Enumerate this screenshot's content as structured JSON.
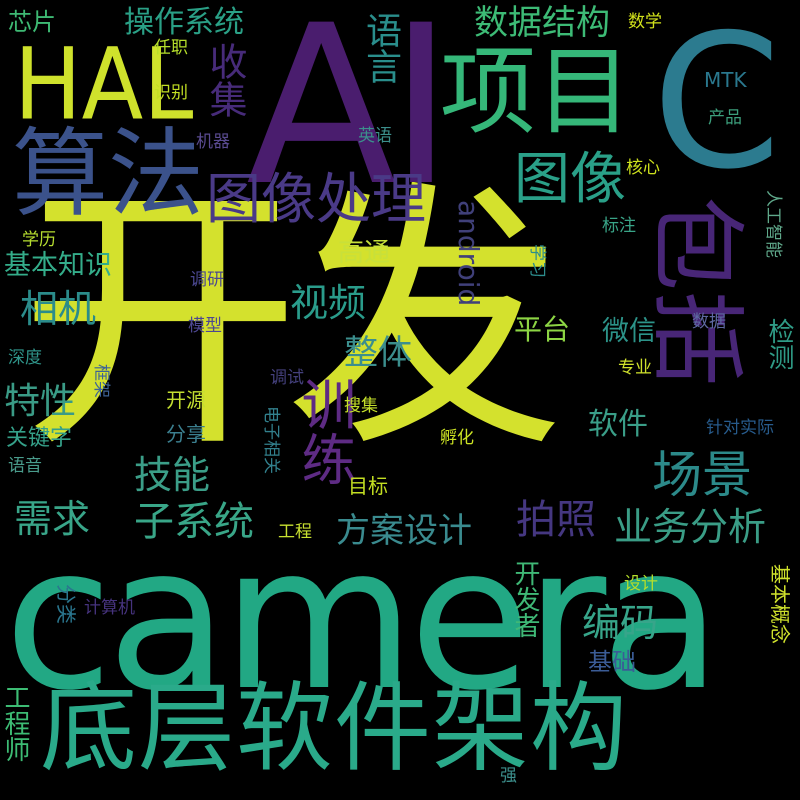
{
  "words": [
    {
      "key": "kaifa",
      "text": "开发",
      "color": "#d4e12d"
    },
    {
      "key": "camera",
      "text": "camera",
      "color": "#22a884"
    },
    {
      "key": "dicengruanjianjiagou",
      "text": "底层软件架构",
      "color": "#2aaa8a"
    },
    {
      "key": "ai",
      "text": "AI",
      "color": "#4a1d6e"
    },
    {
      "key": "c",
      "text": "C",
      "color": "#2c7b8f"
    },
    {
      "key": "hal",
      "text": "HAL",
      "color": "#cfe22c"
    },
    {
      "key": "xiangmu",
      "text": "项目",
      "color": "#35b779"
    },
    {
      "key": "suanfa",
      "text": "算法",
      "color": "#3b528b"
    },
    {
      "key": "baokuo",
      "text": "包括",
      "color": "#482677"
    },
    {
      "key": "tuxiangchuli",
      "text": "图像处理",
      "color": "#4a3a87"
    },
    {
      "key": "tuxiang",
      "text": "图像",
      "color": "#2aa088"
    },
    {
      "key": "xunlian",
      "text": "训练",
      "color": "#5e2b84"
    },
    {
      "key": "changjing",
      "text": "场景",
      "color": "#2c8a8a"
    },
    {
      "key": "shujujiegou",
      "text": "数据结构",
      "color": "#3dbb76"
    },
    {
      "key": "caozuoxitong",
      "text": "操作系统",
      "color": "#2aa086"
    },
    {
      "key": "yuyan",
      "text": "语言",
      "color": "#2a8e8c"
    },
    {
      "key": "shouji",
      "text": "收集",
      "color": "#472b7a"
    },
    {
      "key": "xinpian",
      "text": "芯片",
      "color": "#3eb973"
    },
    {
      "key": "renzhi",
      "text": "任职",
      "color": "#b5de2b"
    },
    {
      "key": "shibie",
      "text": "识别",
      "color": "#c2df23"
    },
    {
      "key": "shuxue",
      "text": "数学",
      "color": "#d2e21b"
    },
    {
      "key": "mtk",
      "text": "MTK",
      "color": "#2a788e"
    },
    {
      "key": "chanpin",
      "text": "产品",
      "color": "#3c9f7c"
    },
    {
      "key": "jiqi",
      "text": "机器",
      "color": "#5a4b91"
    },
    {
      "key": "yingyu",
      "text": "英语",
      "color": "#3c8f8c"
    },
    {
      "key": "android",
      "text": "android",
      "color": "#40407a"
    },
    {
      "key": "hexin",
      "text": "核心",
      "color": "#cde11d"
    },
    {
      "key": "xueli",
      "text": "学历",
      "color": "#b6dd30"
    },
    {
      "key": "biaozhu",
      "text": "标注",
      "color": "#39a487"
    },
    {
      "key": "rengongzhineng",
      "text": "人工智能",
      "color": "#5fa88a"
    },
    {
      "key": "jibenzhishi",
      "text": "基本知识",
      "color": "#34ad8a"
    },
    {
      "key": "gaotong",
      "text": "高通",
      "color": "#c8e03a"
    },
    {
      "key": "xuexi",
      "text": "学习",
      "color": "#2c8d8d"
    },
    {
      "key": "tiaoyan",
      "text": "调研",
      "color": "#4a478f"
    },
    {
      "key": "xiangji",
      "text": "相机",
      "color": "#2b8c8b"
    },
    {
      "key": "shipin",
      "text": "视频",
      "color": "#2a9c8b"
    },
    {
      "key": "moxing",
      "text": "模型",
      "color": "#4d4790"
    },
    {
      "key": "pingtai",
      "text": "平台",
      "color": "#8dd544"
    },
    {
      "key": "shuju",
      "text": "数据",
      "color": "#5d68a0"
    },
    {
      "key": "jiance",
      "text": "检测",
      "color": "#2f9b86"
    },
    {
      "key": "zhengti",
      "text": "整体",
      "color": "#3b8e8d"
    },
    {
      "key": "weixin",
      "text": "微信",
      "color": "#2c9389"
    },
    {
      "key": "shendu",
      "text": "深度",
      "color": "#2f958a"
    },
    {
      "key": "zhuanye",
      "text": "专业",
      "color": "#cfe12c"
    },
    {
      "key": "texing",
      "text": "特性",
      "color": "#3a9b86"
    },
    {
      "key": "kuangjia",
      "text": "框架",
      "color": "#3d6396"
    },
    {
      "key": "tiaoshi",
      "text": "调试",
      "color": "#44407c"
    },
    {
      "key": "kaiyuan",
      "text": "开源",
      "color": "#c4df31"
    },
    {
      "key": "sousuo",
      "text": "搜集",
      "color": "#c5e02a"
    },
    {
      "key": "guanjianzi",
      "text": "关键字",
      "color": "#35a089"
    },
    {
      "key": "fenxiang",
      "text": "分享",
      "color": "#3b7f8f"
    },
    {
      "key": "dianzixiangguan",
      "text": "电子相关",
      "color": "#32808d"
    },
    {
      "key": "ruanjian",
      "text": "软件",
      "color": "#3a9e88"
    },
    {
      "key": "zhenduishiji",
      "text": "针对实际",
      "color": "#275b8c"
    },
    {
      "key": "fuhua",
      "text": "孵化",
      "color": "#cce324"
    },
    {
      "key": "yuyin",
      "text": "语音",
      "color": "#4a9c8c"
    },
    {
      "key": "jineng",
      "text": "技能",
      "color": "#3b9e88"
    },
    {
      "key": "mubiao",
      "text": "目标",
      "color": "#c3df22"
    },
    {
      "key": "xuqiu",
      "text": "需求",
      "color": "#39a589"
    },
    {
      "key": "zixitong",
      "text": "子系统",
      "color": "#39a688"
    },
    {
      "key": "gongcheng",
      "text": "工程",
      "color": "#c8e030"
    },
    {
      "key": "fanganshezhi",
      "text": "方案设计",
      "color": "#3a8b8f"
    },
    {
      "key": "paizhao",
      "text": "拍照",
      "color": "#453781"
    },
    {
      "key": "yewufenxi",
      "text": "业务分析",
      "color": "#3a9d86"
    },
    {
      "key": "fenlei",
      "text": "分类",
      "color": "#2a768e"
    },
    {
      "key": "jisuanji",
      "text": "计算机",
      "color": "#46337e"
    },
    {
      "key": "kaifazhe",
      "text": "开发者",
      "color": "#3fb876"
    },
    {
      "key": "bianma",
      "text": "编码",
      "color": "#37a58a"
    },
    {
      "key": "sheji",
      "text": "设计",
      "color": "#b5de2b"
    },
    {
      "key": "jibengainian",
      "text": "基本概念",
      "color": "#cfe12c"
    },
    {
      "key": "jichu",
      "text": "基础",
      "color": "#3b5c96"
    },
    {
      "key": "gongchengshi",
      "text": "工程师",
      "color": "#3dbc74"
    },
    {
      "key": "qiang",
      "text": "强",
      "color": "#3c8f8c"
    }
  ]
}
